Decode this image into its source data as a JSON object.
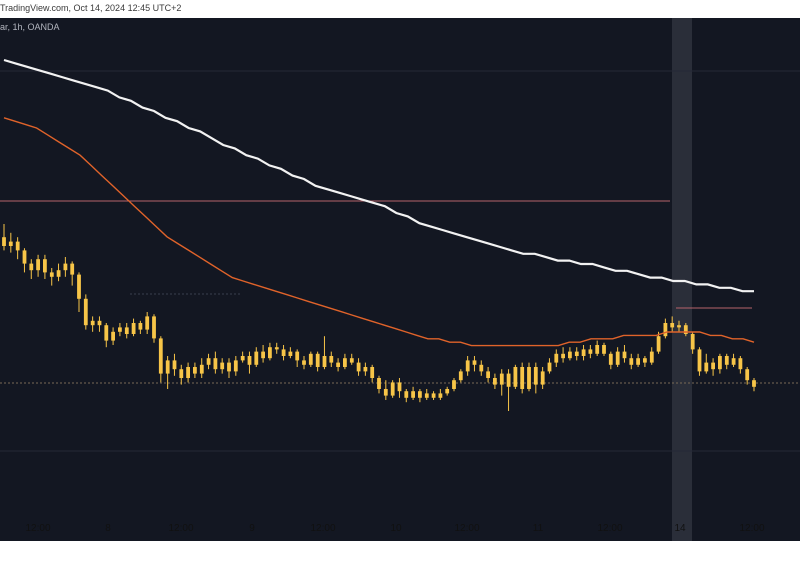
{
  "header": {
    "watermark": "TradingView.com, Oct 14, 2024 12:45 UTC+2",
    "symbol": "ar, 1h, OANDA"
  },
  "colors": {
    "background": "#131722",
    "candle": "#f7c548",
    "ma_slow": "#f2f2f2",
    "ma_fast": "#e0632a",
    "level_line": "#b5636b",
    "dotted_level": "#7a6a55",
    "highlight": "#2a2e39"
  },
  "chart_data": {
    "type": "candlestick",
    "interval": "1h",
    "x_tick_labels": [
      "12:00",
      "8",
      "12:00",
      "9",
      "12:00",
      "10",
      "12:00",
      "11",
      "12:00",
      "14",
      "12:00"
    ],
    "ylim": [
      0,
      100
    ],
    "candles": [
      [
        74,
        70,
        80,
        68
      ],
      [
        70,
        72,
        76,
        67
      ],
      [
        72,
        68,
        74,
        64
      ],
      [
        68,
        62,
        69,
        58
      ],
      [
        62,
        59,
        64,
        55
      ],
      [
        59,
        64,
        66,
        56
      ],
      [
        64,
        58,
        66,
        55
      ],
      [
        58,
        56,
        60,
        52
      ],
      [
        56,
        59,
        62,
        54
      ],
      [
        59,
        62,
        65,
        56
      ],
      [
        62,
        57,
        63,
        52
      ],
      [
        57,
        46,
        58,
        40
      ],
      [
        46,
        34,
        48,
        32
      ],
      [
        34,
        36,
        38,
        31
      ],
      [
        36,
        34,
        38,
        31
      ],
      [
        34,
        27,
        35,
        24
      ],
      [
        27,
        31,
        33,
        25
      ],
      [
        31,
        33,
        35,
        29
      ],
      [
        33,
        30,
        35,
        28
      ],
      [
        30,
        35,
        37,
        29
      ],
      [
        35,
        32,
        36,
        30
      ],
      [
        32,
        38,
        40,
        30
      ],
      [
        38,
        28,
        39,
        26
      ],
      [
        28,
        12,
        29,
        8
      ],
      [
        12,
        18,
        20,
        5
      ],
      [
        18,
        14,
        21,
        11
      ],
      [
        14,
        10,
        16,
        7
      ],
      [
        10,
        15,
        17,
        8
      ],
      [
        15,
        12,
        17,
        10
      ],
      [
        12,
        16,
        19,
        10
      ],
      [
        16,
        19,
        21,
        14
      ],
      [
        19,
        14,
        22,
        12
      ],
      [
        14,
        17,
        19,
        12
      ],
      [
        17,
        13,
        19,
        10
      ],
      [
        13,
        18,
        20,
        11
      ],
      [
        18,
        20,
        22,
        17
      ],
      [
        20,
        16,
        22,
        12
      ],
      [
        16,
        22,
        24,
        15
      ],
      [
        22,
        19,
        25,
        17
      ],
      [
        19,
        24,
        26,
        18
      ],
      [
        24,
        23,
        26,
        21
      ],
      [
        23,
        20,
        25,
        18
      ],
      [
        20,
        22,
        24,
        19
      ],
      [
        22,
        18,
        23,
        15
      ],
      [
        18,
        16,
        20,
        14
      ],
      [
        16,
        21,
        22,
        15
      ],
      [
        21,
        15,
        22,
        13
      ],
      [
        15,
        20,
        29,
        14
      ],
      [
        20,
        17,
        22,
        15
      ],
      [
        17,
        15,
        19,
        13
      ],
      [
        15,
        19,
        21,
        14
      ],
      [
        19,
        17,
        21,
        16
      ],
      [
        17,
        13,
        19,
        11
      ],
      [
        13,
        15,
        17,
        11
      ],
      [
        15,
        10,
        16,
        8
      ],
      [
        10,
        5,
        11,
        3
      ],
      [
        5,
        2,
        9,
        0
      ],
      [
        2,
        8,
        9,
        1
      ],
      [
        8,
        4,
        10,
        1
      ],
      [
        4,
        1,
        5,
        -1
      ],
      [
        1,
        4,
        6,
        0
      ],
      [
        4,
        1,
        5,
        -1
      ],
      [
        1,
        3,
        5,
        0
      ],
      [
        3,
        1,
        4,
        0
      ],
      [
        1,
        3,
        5,
        0
      ],
      [
        3,
        5,
        6,
        2
      ],
      [
        5,
        9,
        10,
        4
      ],
      [
        9,
        13,
        14,
        8
      ],
      [
        13,
        18,
        20,
        11
      ],
      [
        18,
        16,
        20,
        13
      ],
      [
        16,
        13,
        18,
        11
      ],
      [
        13,
        10,
        15,
        8
      ],
      [
        10,
        7,
        12,
        5
      ],
      [
        7,
        12,
        14,
        2
      ],
      [
        12,
        6,
        14,
        -5
      ],
      [
        6,
        15,
        16,
        5
      ],
      [
        15,
        5,
        17,
        3
      ],
      [
        5,
        15,
        17,
        4
      ],
      [
        15,
        7,
        17,
        3
      ],
      [
        7,
        13,
        15,
        5
      ],
      [
        13,
        17,
        19,
        12
      ],
      [
        17,
        21,
        23,
        15
      ],
      [
        21,
        19,
        24,
        17
      ],
      [
        19,
        22,
        24,
        18
      ],
      [
        22,
        20,
        24,
        18
      ],
      [
        20,
        23,
        25,
        18
      ],
      [
        23,
        21,
        25,
        19
      ],
      [
        21,
        25,
        27,
        20
      ],
      [
        25,
        21,
        26,
        20
      ],
      [
        21,
        16,
        22,
        14
      ],
      [
        16,
        22,
        24,
        15
      ],
      [
        22,
        19,
        25,
        17
      ],
      [
        19,
        16,
        21,
        14
      ],
      [
        16,
        19,
        21,
        15
      ],
      [
        19,
        17,
        20,
        15
      ],
      [
        17,
        22,
        24,
        16
      ],
      [
        22,
        29,
        31,
        21
      ],
      [
        29,
        35,
        37,
        28
      ],
      [
        35,
        33,
        38,
        31
      ],
      [
        33,
        34,
        36,
        31
      ],
      [
        34,
        30,
        35,
        29
      ],
      [
        30,
        23,
        31,
        21
      ],
      [
        23,
        13,
        24,
        11
      ],
      [
        13,
        17,
        21,
        12
      ],
      [
        17,
        14,
        19,
        11
      ],
      [
        14,
        20,
        21,
        12
      ],
      [
        20,
        16,
        21,
        14
      ],
      [
        16,
        19,
        21,
        15
      ],
      [
        19,
        14,
        20,
        12
      ],
      [
        14,
        9,
        15,
        7
      ],
      [
        9,
        6,
        10,
        4
      ]
    ],
    "ma_slow_values": [
      100,
      99,
      98,
      97,
      96,
      95,
      94,
      93,
      92,
      91,
      89,
      88,
      86,
      85,
      83,
      82,
      80,
      79,
      77,
      75,
      74,
      72,
      71,
      69,
      68,
      66,
      65,
      63,
      62,
      61,
      60,
      59,
      58,
      57,
      55,
      54,
      52,
      51,
      50,
      49,
      48,
      47,
      46,
      45,
      44,
      43,
      43,
      42,
      41,
      41,
      40,
      40,
      39,
      38,
      38,
      37,
      36,
      36,
      35,
      35,
      34,
      34,
      33,
      33,
      32,
      32
    ],
    "ma_fast_values": [
      83,
      82,
      81,
      80,
      78,
      76,
      74,
      72,
      69,
      66,
      63,
      60,
      57,
      54,
      51,
      48,
      46,
      44,
      42,
      40,
      38,
      36,
      35,
      34,
      33,
      32,
      31,
      30,
      29,
      28,
      27,
      26,
      25,
      24,
      23,
      22,
      21,
      20,
      19,
      18,
      18,
      17,
      17,
      16,
      16,
      16,
      16,
      16,
      16,
      16,
      16,
      16,
      17,
      17,
      18,
      18,
      18,
      19,
      19,
      19,
      19,
      20,
      20,
      20,
      20,
      19,
      19,
      18,
      18,
      17
    ]
  }
}
